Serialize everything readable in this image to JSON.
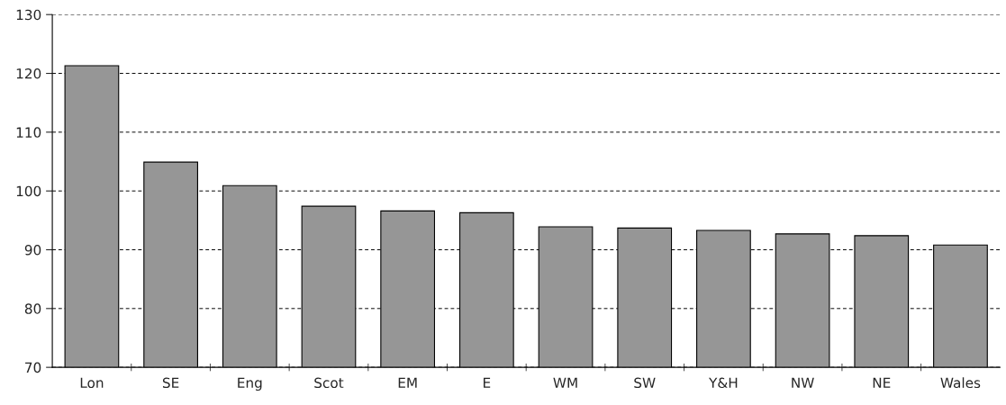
{
  "chart_data": {
    "type": "bar",
    "categories": [
      "Lon",
      "SE",
      "Eng",
      "Scot",
      "EM",
      "E",
      "WM",
      "SW",
      "Y&H",
      "NW",
      "NE",
      "Wales"
    ],
    "values": [
      121.3,
      104.9,
      100.9,
      97.4,
      96.6,
      96.3,
      93.9,
      93.7,
      93.3,
      92.7,
      92.4,
      90.8
    ],
    "color": "#969696",
    "ylim": [
      70,
      130
    ],
    "yticks": [
      70,
      80,
      90,
      100,
      110,
      120,
      130
    ],
    "grid": "y",
    "line_style": "dashed"
  }
}
